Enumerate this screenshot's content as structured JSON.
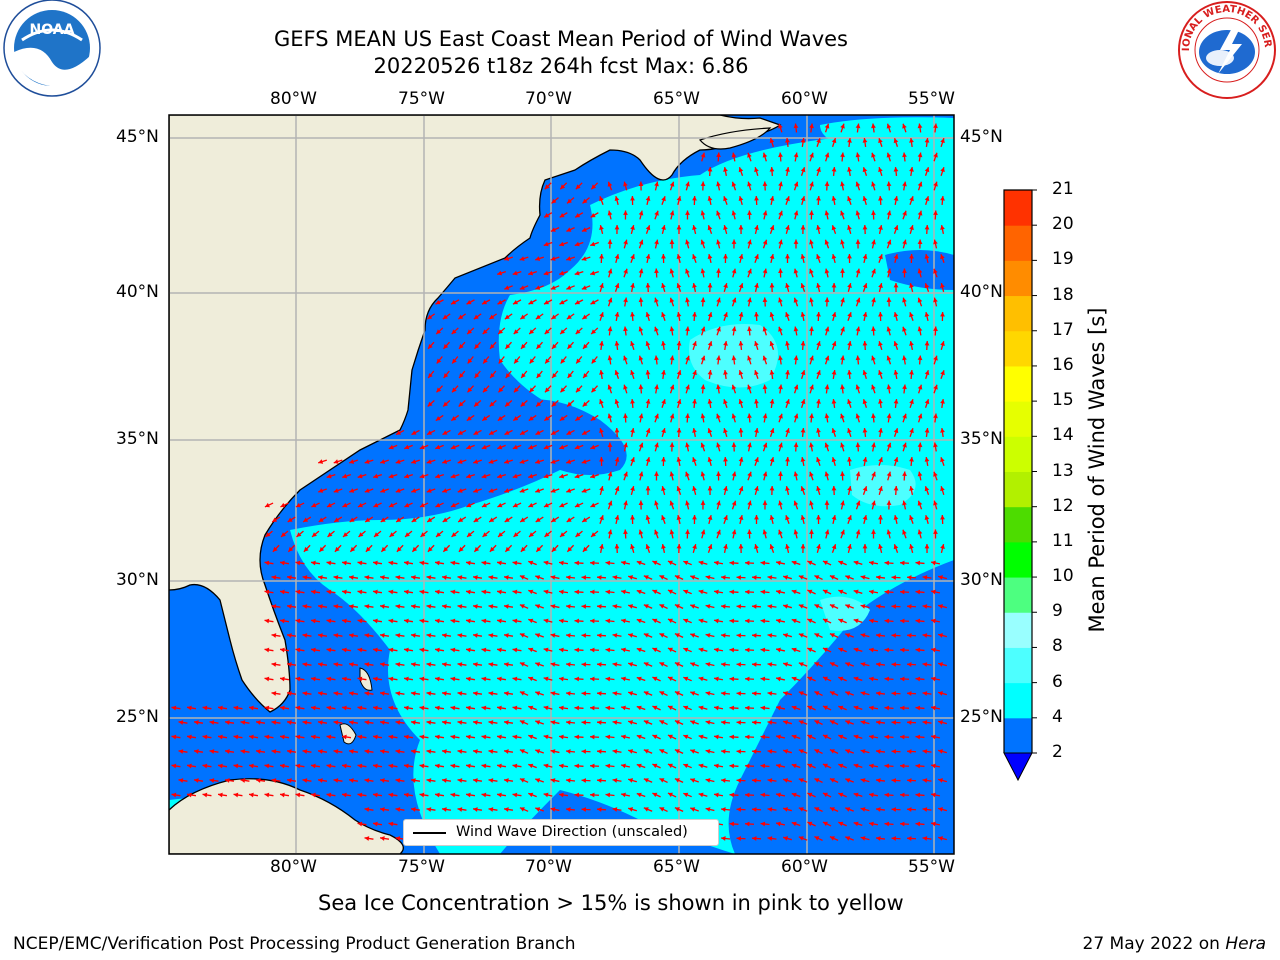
{
  "title": {
    "line1": "GEFS MEAN US East Coast Mean Period of Wind Waves",
    "line2": "20220526 t18z 264h fcst   Max: 6.86"
  },
  "axes": {
    "lon_labels": [
      "80°W",
      "75°W",
      "70°W",
      "65°W",
      "60°W",
      "55°W"
    ],
    "lat_labels": [
      "45°N",
      "40°N",
      "35°N",
      "30°N",
      "25°N"
    ]
  },
  "legend": {
    "label": "Wind Wave Direction (unscaled)"
  },
  "colorbar": {
    "title": "Mean Period of Wind Waves [s]",
    "ticks": [
      "2",
      "4",
      "6",
      "8",
      "9",
      "10",
      "11",
      "12",
      "13",
      "14",
      "15",
      "16",
      "17",
      "18",
      "19",
      "20",
      "21"
    ],
    "colors": [
      "#0073ff",
      "#00ffff",
      "#4dffff",
      "#99ffff",
      "#4dff80",
      "#00ff00",
      "#4ddc00",
      "#b2f000",
      "#ccff00",
      "#e6ff00",
      "#ffff00",
      "#ffd700",
      "#ffbf00",
      "#ff8c00",
      "#ff6400",
      "#ff3200",
      "#ff0000"
    ],
    "under_color": "#0000ff"
  },
  "subtitle": "Sea Ice Concentration > 15% is shown in pink to yellow",
  "footer": {
    "credit": "NCEP/EMC/Verification Post Processing Product Generation Branch",
    "date": "27 May 2022 on",
    "host": "Hera"
  },
  "logos": {
    "noaa_text": "NOAA",
    "nws_text": "NATIONAL WEATHER SERVICE"
  },
  "map_colors": {
    "land": "#efedda",
    "ocean_dark": "#0073ff",
    "ocean_light": "#00ffff",
    "ocean_pale": "#4dffff",
    "arrow": "#ff0000",
    "grid": "#b3b3b3"
  }
}
